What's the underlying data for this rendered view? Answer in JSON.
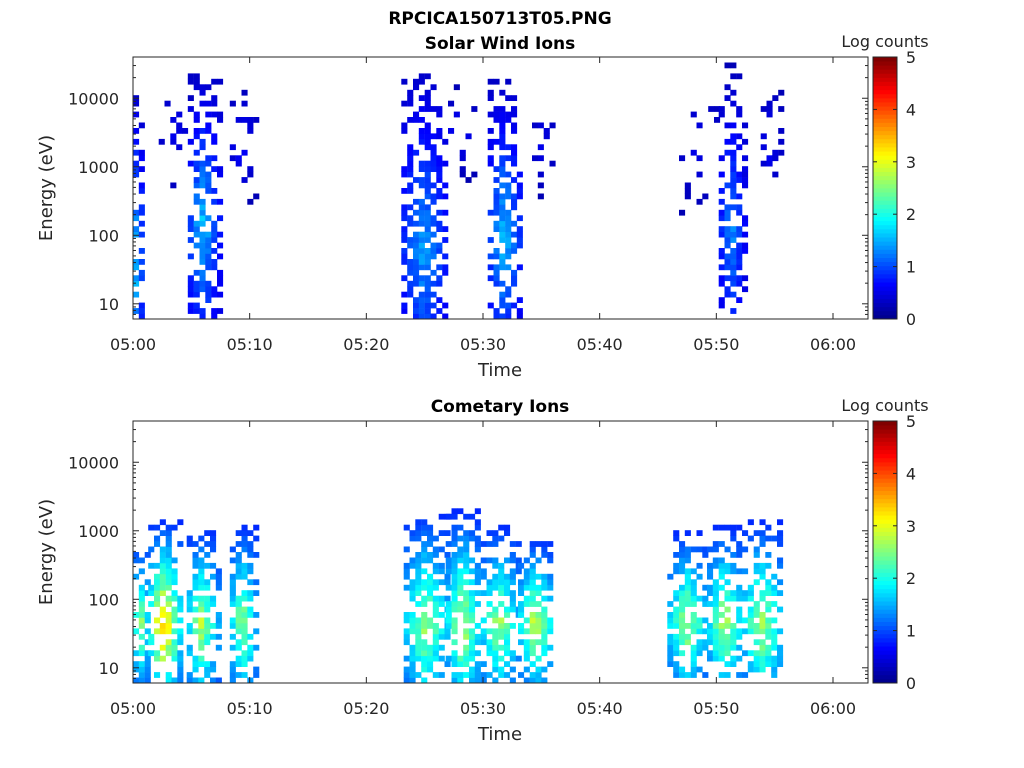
{
  "figure_title": "RPCICA150713T05.PNG",
  "colors": {
    "colormap": [
      "#00008f",
      "#0000ff",
      "#0080ff",
      "#00ffff",
      "#80ff80",
      "#ffff00",
      "#ff8000",
      "#ff0000",
      "#800000"
    ],
    "axis": "#262626"
  },
  "chart_data": [
    {
      "type": "heatmap",
      "title": "Solar Wind Ions",
      "xlabel": "Time",
      "ylabel": "Energy (eV)",
      "x_range": [
        "05:00",
        "06:03"
      ],
      "x_ticks": [
        "05:00",
        "05:10",
        "05:20",
        "05:30",
        "05:40",
        "05:50",
        "06:00"
      ],
      "y_scale": "log",
      "y_range": [
        6,
        40000
      ],
      "y_ticks": [
        "10",
        "100",
        "1000",
        "10000"
      ],
      "colorbar": {
        "label": "Log counts",
        "range": [
          0,
          5
        ],
        "ticks": [
          "0",
          "1",
          "2",
          "3",
          "4",
          "5"
        ]
      },
      "bursts": [
        {
          "t_start": 0.0,
          "t_end": 0.8,
          "e_min": 6,
          "e_max": 18000,
          "density": 0.75,
          "level_min": 0.2,
          "level_max": 2.2,
          "peak_e": 40
        },
        {
          "t_start": 2.2,
          "t_end": 5.0,
          "e_min": 300,
          "e_max": 12000,
          "density": 0.13,
          "level_min": 0.2,
          "level_max": 0.6,
          "peak_e": 3000
        },
        {
          "t_start": 4.7,
          "t_end": 7.3,
          "e_min": 6,
          "e_max": 20000,
          "density": 0.8,
          "level_min": 0.3,
          "level_max": 1.8,
          "peak_e": 120
        },
        {
          "t_start": 8.3,
          "t_end": 10.4,
          "e_min": 300,
          "e_max": 15000,
          "density": 0.3,
          "level_min": 0.2,
          "level_max": 0.8,
          "peak_e": 2000
        },
        {
          "t_start": 23.0,
          "t_end": 26.8,
          "e_min": 6,
          "e_max": 23000,
          "density": 0.78,
          "level_min": 0.3,
          "level_max": 1.6,
          "peak_e": 60
        },
        {
          "t_start": 27.0,
          "t_end": 29.2,
          "e_min": 700,
          "e_max": 14000,
          "density": 0.25,
          "level_min": 0.2,
          "level_max": 0.8,
          "peak_e": 3000
        },
        {
          "t_start": 30.4,
          "t_end": 33.2,
          "e_min": 6,
          "e_max": 16000,
          "density": 0.8,
          "level_min": 0.3,
          "level_max": 1.8,
          "peak_e": 80
        },
        {
          "t_start": 34.2,
          "t_end": 36.0,
          "e_min": 400,
          "e_max": 12000,
          "density": 0.2,
          "level_min": 0.2,
          "level_max": 0.6,
          "peak_e": 2000
        },
        {
          "t_start": 46.8,
          "t_end": 50.0,
          "e_min": 200,
          "e_max": 14000,
          "density": 0.15,
          "level_min": 0.2,
          "level_max": 0.6,
          "peak_e": 2000
        },
        {
          "t_start": 50.2,
          "t_end": 52.4,
          "e_min": 6,
          "e_max": 30000,
          "density": 0.7,
          "level_min": 0.2,
          "level_max": 1.5,
          "peak_e": 100
        },
        {
          "t_start": 53.8,
          "t_end": 55.4,
          "e_min": 500,
          "e_max": 14000,
          "density": 0.28,
          "level_min": 0.2,
          "level_max": 0.7,
          "peak_e": 2000
        }
      ]
    },
    {
      "type": "heatmap",
      "title": "Cometary Ions",
      "xlabel": "Time",
      "ylabel": "Energy (eV)",
      "x_range": [
        "05:00",
        "06:03"
      ],
      "x_ticks": [
        "05:00",
        "05:10",
        "05:20",
        "05:30",
        "05:40",
        "05:50",
        "06:00"
      ],
      "y_scale": "log",
      "y_range": [
        6,
        40000
      ],
      "y_ticks": [
        "10",
        "100",
        "1000",
        "10000"
      ],
      "colorbar": {
        "label": "Log counts",
        "range": [
          0,
          5
        ],
        "ticks": [
          "0",
          "1",
          "2",
          "3",
          "4",
          "5"
        ]
      },
      "bursts": [
        {
          "t_start": 0.0,
          "t_end": 1.3,
          "e_min": 6,
          "e_max": 450,
          "density": 0.85,
          "level_min": 1.0,
          "level_max": 3.0,
          "peak_e": 40
        },
        {
          "t_start": 1.3,
          "t_end": 4.0,
          "e_min": 6,
          "e_max": 1300,
          "density": 0.85,
          "level_min": 0.8,
          "level_max": 4.0,
          "peak_e": 40
        },
        {
          "t_start": 4.6,
          "t_end": 7.2,
          "e_min": 6,
          "e_max": 1000,
          "density": 0.85,
          "level_min": 0.8,
          "level_max": 3.1,
          "peak_e": 40
        },
        {
          "t_start": 8.3,
          "t_end": 10.5,
          "e_min": 6,
          "e_max": 1100,
          "density": 0.85,
          "level_min": 0.8,
          "level_max": 3.0,
          "peak_e": 40
        },
        {
          "t_start": 23.2,
          "t_end": 27.0,
          "e_min": 6,
          "e_max": 1600,
          "density": 0.85,
          "level_min": 0.8,
          "level_max": 3.0,
          "peak_e": 40
        },
        {
          "t_start": 26.8,
          "t_end": 29.8,
          "e_min": 6,
          "e_max": 1800,
          "density": 0.85,
          "level_min": 0.8,
          "level_max": 3.2,
          "peak_e": 40
        },
        {
          "t_start": 29.8,
          "t_end": 33.0,
          "e_min": 6,
          "e_max": 1100,
          "density": 0.85,
          "level_min": 0.8,
          "level_max": 3.0,
          "peak_e": 40
        },
        {
          "t_start": 33.0,
          "t_end": 36.0,
          "e_min": 6,
          "e_max": 700,
          "density": 0.85,
          "level_min": 0.8,
          "level_max": 3.3,
          "peak_e": 40
        },
        {
          "t_start": 45.8,
          "t_end": 49.2,
          "e_min": 8,
          "e_max": 900,
          "density": 0.85,
          "level_min": 0.8,
          "level_max": 3.0,
          "peak_e": 40
        },
        {
          "t_start": 49.2,
          "t_end": 52.2,
          "e_min": 8,
          "e_max": 1100,
          "density": 0.85,
          "level_min": 0.8,
          "level_max": 3.1,
          "peak_e": 40
        },
        {
          "t_start": 52.2,
          "t_end": 55.6,
          "e_min": 8,
          "e_max": 1300,
          "density": 0.85,
          "level_min": 0.8,
          "level_max": 3.1,
          "peak_e": 40
        }
      ]
    }
  ]
}
